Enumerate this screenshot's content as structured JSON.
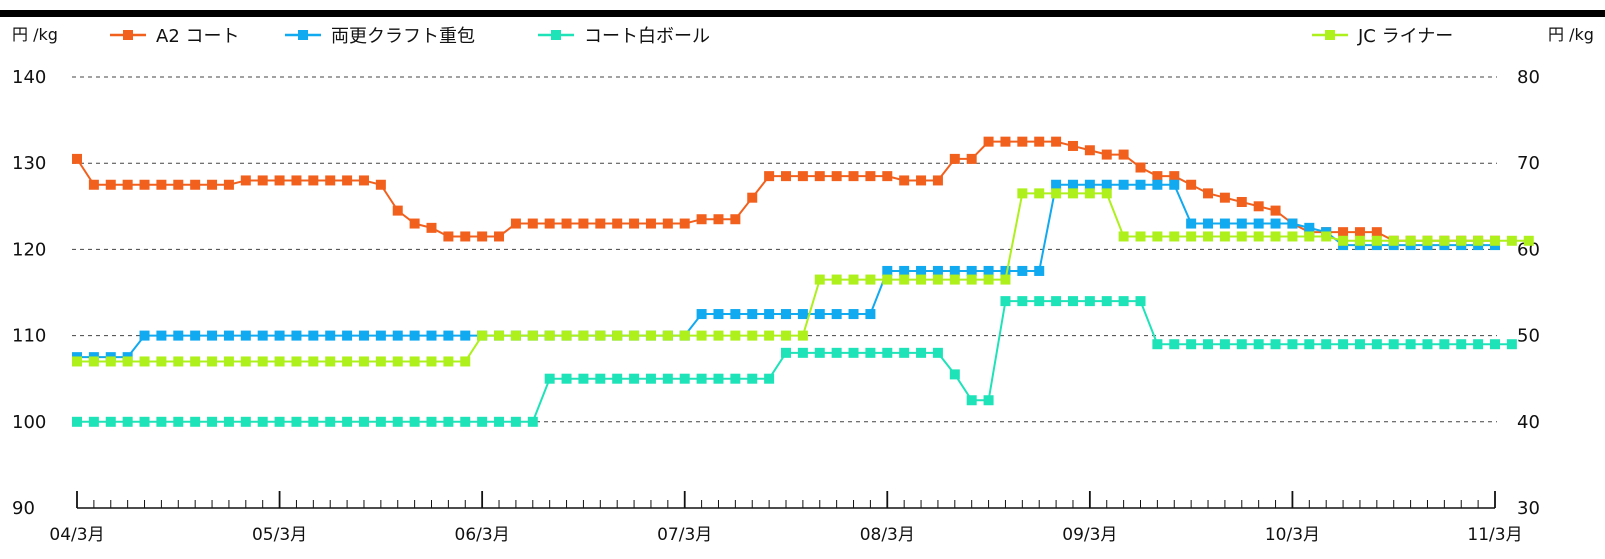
{
  "chart_data": {
    "type": "line",
    "left_unit": "円 /kg",
    "right_unit": "円 /kg",
    "ylim_left": [
      90,
      140
    ],
    "ylim_right": [
      30,
      80
    ],
    "yticks_left": [
      90,
      100,
      110,
      120,
      130,
      140
    ],
    "yticks_right": [
      30,
      40,
      50,
      60,
      70,
      80
    ],
    "grid": "horizontal dashed",
    "legend_placement": "top",
    "x_labels": [
      "04/3月",
      "05/3月",
      "06/3月",
      "07/3月",
      "08/3月",
      "09/3月",
      "10/3月",
      "11/3月"
    ],
    "months_per_label": 12,
    "series": [
      {
        "name": "A2 コート",
        "axis": "left",
        "color": "#f2601e",
        "values": [
          130.5,
          127.5,
          127.5,
          127.5,
          127.5,
          127.5,
          127.5,
          127.5,
          127.5,
          127.5,
          128,
          128,
          128,
          128,
          128,
          128,
          128,
          128,
          127.5,
          124.5,
          123,
          122.5,
          121.5,
          121.5,
          121.5,
          121.5,
          123,
          123,
          123,
          123,
          123,
          123,
          123,
          123,
          123,
          123,
          123,
          123.5,
          123.5,
          123.5,
          126,
          128.5,
          128.5,
          128.5,
          128.5,
          128.5,
          128.5,
          128.5,
          128.5,
          128,
          128,
          128,
          130.5,
          130.5,
          132.5,
          132.5,
          132.5,
          132.5,
          132.5,
          132,
          131.5,
          131,
          131,
          129.5,
          128.5,
          128.5,
          127.5,
          126.5,
          126,
          125.5,
          125,
          124.5,
          123,
          122,
          122,
          122,
          122,
          122,
          121,
          121,
          121,
          121,
          121,
          121,
          121
        ]
      },
      {
        "name": "両更クラフト重包",
        "axis": "left",
        "color": "#11a9f0",
        "values": [
          107.5,
          107.5,
          107.5,
          107.5,
          110,
          110,
          110,
          110,
          110,
          110,
          110,
          110,
          110,
          110,
          110,
          110,
          110,
          110,
          110,
          110,
          110,
          110,
          110,
          110,
          110,
          110,
          110,
          110,
          110,
          110,
          110,
          110,
          110,
          110,
          110,
          110,
          110,
          112.5,
          112.5,
          112.5,
          112.5,
          112.5,
          112.5,
          112.5,
          112.5,
          112.5,
          112.5,
          112.5,
          117.5,
          117.5,
          117.5,
          117.5,
          117.5,
          117.5,
          117.5,
          117.5,
          117.5,
          117.5,
          127.5,
          127.5,
          127.5,
          127.5,
          127.5,
          127.5,
          127.5,
          127.5,
          123,
          123,
          123,
          123,
          123,
          123,
          123,
          122.5,
          122,
          120.5,
          120.5,
          120.5,
          120.5,
          120.5,
          120.5,
          120.5,
          120.5,
          120.5,
          120.5
        ]
      },
      {
        "name": "コート白ボール",
        "axis": "left",
        "color": "#1ee3b8",
        "values": [
          100,
          100,
          100,
          100,
          100,
          100,
          100,
          100,
          100,
          100,
          100,
          100,
          100,
          100,
          100,
          100,
          100,
          100,
          100,
          100,
          100,
          100,
          100,
          100,
          100,
          100,
          100,
          100,
          105,
          105,
          105,
          105,
          105,
          105,
          105,
          105,
          105,
          105,
          105,
          105,
          105,
          105,
          108,
          108,
          108,
          108,
          108,
          108,
          108,
          108,
          108,
          108,
          105.5,
          102.5,
          102.5,
          114,
          114,
          114,
          114,
          114,
          114,
          114,
          114,
          114,
          109,
          109,
          109,
          109,
          109,
          109,
          109,
          109,
          109,
          109,
          109,
          109,
          109,
          109,
          109,
          109,
          109,
          109,
          109,
          109,
          109,
          109
        ]
      },
      {
        "name": "JC ライナー",
        "axis": "right",
        "color": "#aef01c",
        "values": [
          47,
          47,
          47,
          47,
          47,
          47,
          47,
          47,
          47,
          47,
          47,
          47,
          47,
          47,
          47,
          47,
          47,
          47,
          47,
          47,
          47,
          47,
          47,
          47,
          50,
          50,
          50,
          50,
          50,
          50,
          50,
          50,
          50,
          50,
          50,
          50,
          50,
          50,
          50,
          50,
          50,
          50,
          50,
          50,
          56.5,
          56.5,
          56.5,
          56.5,
          56.5,
          56.5,
          56.5,
          56.5,
          56.5,
          56.5,
          56.5,
          56.5,
          66.5,
          66.5,
          66.5,
          66.5,
          66.5,
          66.5,
          61.5,
          61.5,
          61.5,
          61.5,
          61.5,
          61.5,
          61.5,
          61.5,
          61.5,
          61.5,
          61.5,
          61.5,
          61.5,
          61,
          61,
          61,
          61,
          61,
          61,
          61,
          61,
          61,
          61,
          61,
          61
        ]
      }
    ]
  }
}
